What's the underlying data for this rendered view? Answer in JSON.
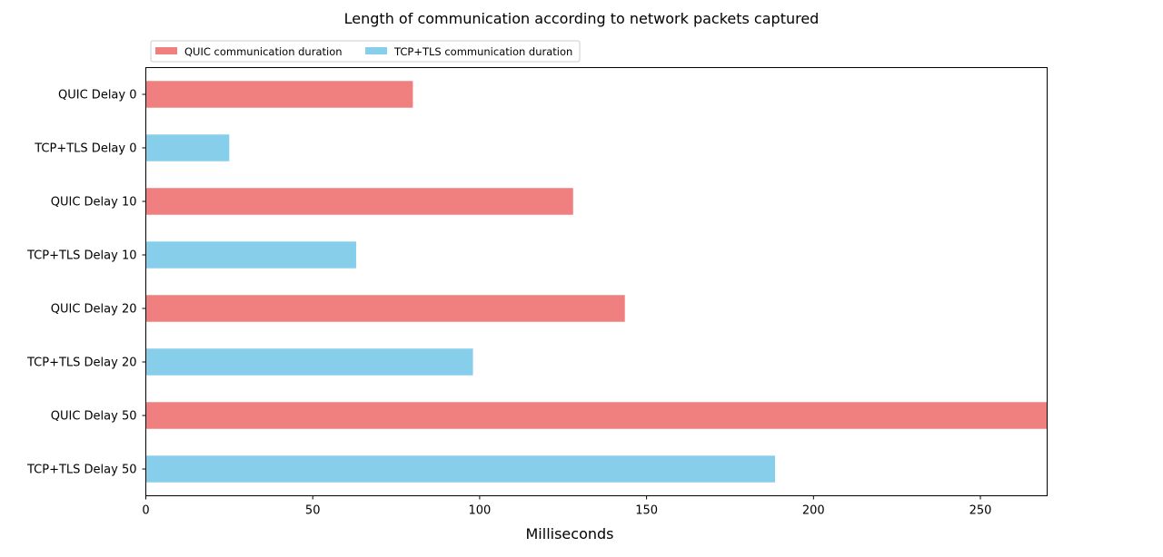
{
  "chart_data": {
    "type": "bar",
    "orientation": "horizontal",
    "title": "Length of communication according to network packets captured",
    "xlabel": "Milliseconds",
    "ylabel": "",
    "xlim": [
      0,
      270
    ],
    "xticks": [
      0,
      50,
      100,
      150,
      200,
      250
    ],
    "grid": false,
    "legend_position": "top-left, above plot",
    "categories": [
      "QUIC Delay 0",
      "TCP+TLS Delay 0",
      "QUIC Delay 10",
      "TCP+TLS Delay 10",
      "QUIC Delay 20",
      "TCP+TLS Delay 20",
      "QUIC Delay 50",
      "TCP+TLS Delay 50"
    ],
    "values": [
      80,
      25,
      128,
      63,
      143.5,
      98,
      270,
      188.5
    ],
    "bar_series": [
      0,
      1,
      0,
      1,
      0,
      1,
      0,
      1
    ],
    "series": [
      {
        "name": "QUIC communication duration",
        "color": "#f08080"
      },
      {
        "name": "TCP+TLS communication duration",
        "color": "#87ceeb"
      }
    ]
  }
}
